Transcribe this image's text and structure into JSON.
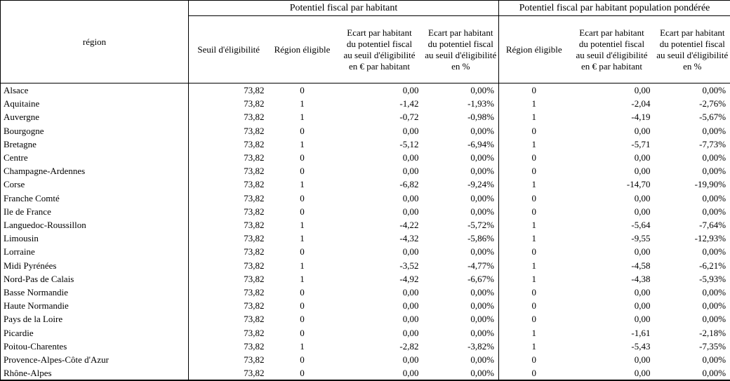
{
  "table": {
    "region_header": "région",
    "groups": [
      {
        "title": "Potentiel fiscal par habitant"
      },
      {
        "title": "Potentiel fiscal par habitant population pondérée"
      }
    ],
    "subheaders": [
      "Seuil d'éligibilité",
      "Région éligible",
      "Ecart par habitant\ndu potentiel fiscal\nau seuil d'éligibilité\nen € par habitant",
      "Ecart par habitant\ndu potentiel fiscal\nau seuil d'éligibilité\nen %",
      "Région éligible",
      "Ecart par habitant\ndu potentiel fiscal\nau seuil d'éligibilité\nen € par habitant",
      "Ecart par habitant\ndu potentiel fiscal\nau seuil d'éligibilité\nen %"
    ],
    "rows": [
      [
        "Alsace",
        "73,82",
        "0",
        "0,00",
        "0,00%",
        "0",
        "0,00",
        "0,00%"
      ],
      [
        "Aquitaine",
        "73,82",
        "1",
        "-1,42",
        "-1,93%",
        "1",
        "-2,04",
        "-2,76%"
      ],
      [
        "Auvergne",
        "73,82",
        "1",
        "-0,72",
        "-0,98%",
        "1",
        "-4,19",
        "-5,67%"
      ],
      [
        "Bourgogne",
        "73,82",
        "0",
        "0,00",
        "0,00%",
        "0",
        "0,00",
        "0,00%"
      ],
      [
        "Bretagne",
        "73,82",
        "1",
        "-5,12",
        "-6,94%",
        "1",
        "-5,71",
        "-7,73%"
      ],
      [
        "Centre",
        "73,82",
        "0",
        "0,00",
        "0,00%",
        "0",
        "0,00",
        "0,00%"
      ],
      [
        "Champagne-Ardennes",
        "73,82",
        "0",
        "0,00",
        "0,00%",
        "0",
        "0,00",
        "0,00%"
      ],
      [
        "Corse",
        "73,82",
        "1",
        "-6,82",
        "-9,24%",
        "1",
        "-14,70",
        "-19,90%"
      ],
      [
        "Franche Comté",
        "73,82",
        "0",
        "0,00",
        "0,00%",
        "0",
        "0,00",
        "0,00%"
      ],
      [
        "Ile de France",
        "73,82",
        "0",
        "0,00",
        "0,00%",
        "0",
        "0,00",
        "0,00%"
      ],
      [
        "Languedoc-Roussillon",
        "73,82",
        "1",
        "-4,22",
        "-5,72%",
        "1",
        "-5,64",
        "-7,64%"
      ],
      [
        "Limousin",
        "73,82",
        "1",
        "-4,32",
        "-5,86%",
        "1",
        "-9,55",
        "-12,93%"
      ],
      [
        "Lorraine",
        "73,82",
        "0",
        "0,00",
        "0,00%",
        "0",
        "0,00",
        "0,00%"
      ],
      [
        "Midi Pyrénées",
        "73,82",
        "1",
        "-3,52",
        "-4,77%",
        "1",
        "-4,58",
        "-6,21%"
      ],
      [
        "Nord-Pas de Calais",
        "73,82",
        "1",
        "-4,92",
        "-6,67%",
        "1",
        "-4,38",
        "-5,93%"
      ],
      [
        "Basse Normandie",
        "73,82",
        "0",
        "0,00",
        "0,00%",
        "0",
        "0,00",
        "0,00%"
      ],
      [
        "Haute Normandie",
        "73,82",
        "0",
        "0,00",
        "0,00%",
        "0",
        "0,00",
        "0,00%"
      ],
      [
        "Pays de la Loire",
        "73,82",
        "0",
        "0,00",
        "0,00%",
        "0",
        "0,00",
        "0,00%"
      ],
      [
        "Picardie",
        "73,82",
        "0",
        "0,00",
        "0,00%",
        "1",
        "-1,61",
        "-2,18%"
      ],
      [
        "Poitou-Charentes",
        "73,82",
        "1",
        "-2,82",
        "-3,82%",
        "1",
        "-5,43",
        "-7,35%"
      ],
      [
        "Provence-Alpes-Côte d'Azur",
        "73,82",
        "0",
        "0,00",
        "0,00%",
        "0",
        "0,00",
        "0,00%"
      ],
      [
        "Rhône-Alpes",
        "73,82",
        "0",
        "0,00",
        "0,00%",
        "0",
        "0,00",
        "0,00%"
      ]
    ]
  }
}
